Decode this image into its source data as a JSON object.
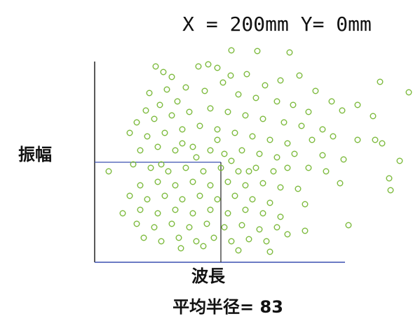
{
  "chart_data": {
    "type": "scatter",
    "title": "X = 200mm Y= 0mm",
    "x_label": "波長",
    "y_label": "振幅",
    "annotation": "平均半径= 83",
    "color": "#7cba3c",
    "xlim": [
      0,
      450
    ],
    "ylim": [
      0,
      310
    ],
    "x": [
      195,
      232,
      278,
      87,
      148,
      162,
      175,
      98,
      110,
      194,
      217,
      292,
      407,
      448,
      78,
      103,
      130,
      243,
      265,
      183,
      157,
      205,
      230,
      315,
      375,
      353,
      338,
      397,
      305,
      283,
      260,
      118,
      93,
      73,
      60,
      85,
      110,
      135,
      165,
      190,
      215,
      240,
      270,
      295,
      325,
      50,
      75,
      100,
      125,
      150,
      175,
      200,
      225,
      250,
      275,
      310,
      340,
      400,
      410,
      375,
      65,
      90,
      115,
      140,
      165,
      185,
      210,
      235,
      260,
      285,
      325,
      355,
      435,
      20,
      55,
      80,
      105,
      130,
      155,
      180,
      205,
      230,
      255,
      275,
      305,
      330,
      420,
      350,
      65,
      90,
      115,
      140,
      165,
      190,
      215,
      240,
      265,
      290,
      422,
      50,
      75,
      100,
      125,
      150,
      175,
      200,
      225,
      250,
      300,
      40,
      65,
      90,
      115,
      140,
      165,
      190,
      215,
      240,
      265,
      362,
      60,
      85,
      110,
      135,
      160,
      185,
      210,
      235,
      260,
      300,
      70,
      95,
      120,
      145,
      170,
      195,
      220,
      245,
      275,
      123,
      155,
      205,
      250,
      95,
      145,
      195,
      125,
      175,
      220
    ],
    "values": [
      303,
      302,
      300,
      280,
      280,
      283,
      278,
      272,
      265,
      267,
      269,
      267,
      258,
      243,
      242,
      247,
      250,
      253,
      260,
      257,
      245,
      240,
      235,
      245,
      225,
      217,
      230,
      209,
      215,
      225,
      230,
      230,
      225,
      217,
      200,
      205,
      210,
      215,
      220,
      215,
      210,
      205,
      200,
      195,
      190,
      185,
      180,
      185,
      190,
      195,
      190,
      185,
      180,
      175,
      170,
      175,
      180,
      175,
      170,
      175,
      160,
      165,
      160,
      165,
      160,
      155,
      160,
      155,
      150,
      155,
      153,
      147,
      145,
      130,
      140,
      135,
      130,
      135,
      130,
      135,
      130,
      135,
      130,
      135,
      135,
      130,
      120,
      113,
      110,
      115,
      110,
      115,
      110,
      115,
      110,
      113,
      107,
      105,
      103,
      95,
      90,
      95,
      90,
      95,
      90,
      95,
      90,
      85,
      83,
      70,
      75,
      70,
      75,
      70,
      75,
      70,
      75,
      70,
      65,
      53,
      55,
      50,
      55,
      50,
      55,
      50,
      53,
      47,
      50,
      45,
      35,
      30,
      35,
      30,
      35,
      30,
      33,
      30,
      40,
      20,
      23,
      17,
      15,
      140,
      150,
      145,
      170,
      175,
      130
    ]
  }
}
